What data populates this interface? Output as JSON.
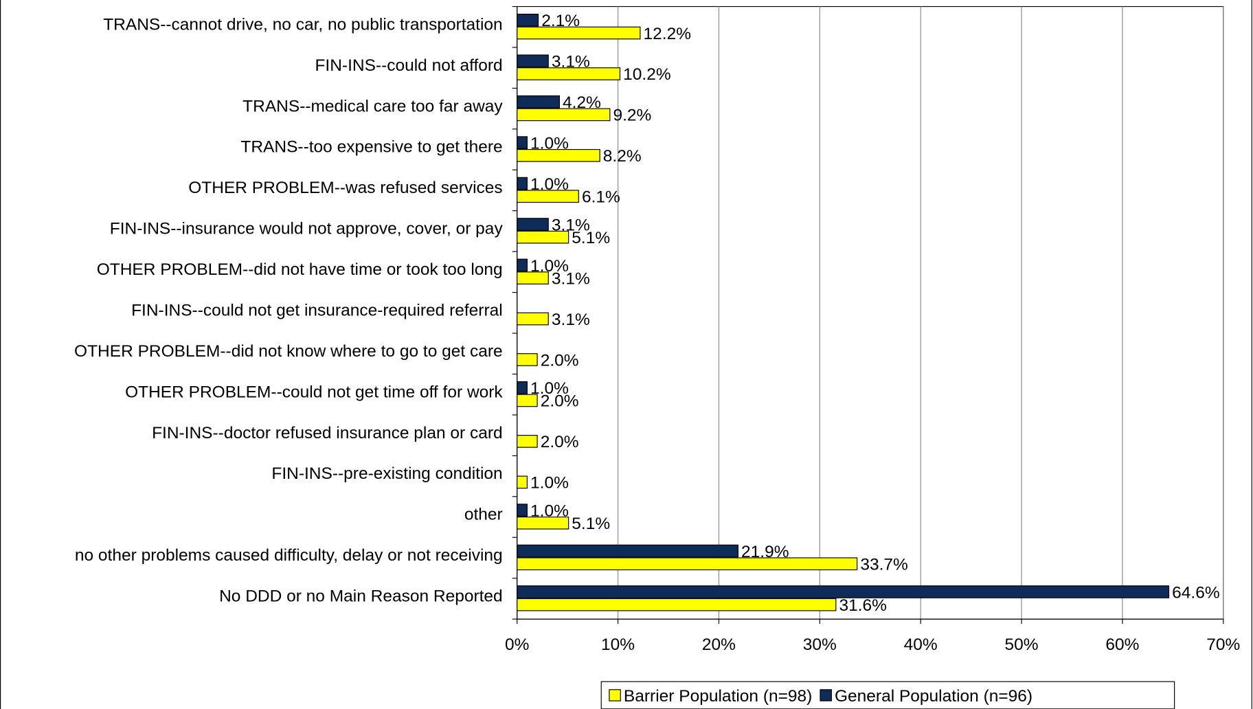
{
  "chart_data": {
    "type": "bar",
    "orientation": "horizontal",
    "categories": [
      "TRANS--cannot drive, no car, no public transportation",
      "FIN-INS--could not afford",
      "TRANS--medical care too far away",
      "TRANS--too expensive to get there",
      "OTHER PROBLEM--was refused services",
      "FIN-INS--insurance would not approve, cover, or pay",
      "OTHER PROBLEM--did not have time or took too long",
      "FIN-INS--could not get insurance-required referral",
      "OTHER PROBLEM--did not know where to go to get care",
      "OTHER PROBLEM--could not get time off for work",
      "FIN-INS--doctor refused insurance plan or card",
      "FIN-INS--pre-existing condition",
      "other",
      "no other problems caused difficulty, delay or not receiving",
      "No DDD or no Main Reason Reported"
    ],
    "series": [
      {
        "name": "Barrier Population (n=98)",
        "color": "#ffff00",
        "values": [
          12.2,
          10.2,
          9.2,
          8.2,
          6.1,
          5.1,
          3.1,
          3.1,
          2.0,
          2.0,
          2.0,
          1.0,
          5.1,
          33.7,
          31.6
        ],
        "value_labels": [
          "12.2%",
          "10.2%",
          "9.2%",
          "8.2%",
          "6.1%",
          "5.1%",
          "3.1%",
          "3.1%",
          "2.0%",
          "2.0%",
          "2.0%",
          "1.0%",
          "5.1%",
          "33.7%",
          "31.6%"
        ]
      },
      {
        "name": "General Population (n=96)",
        "color": "#0f2b57",
        "values": [
          2.1,
          3.1,
          4.2,
          1.0,
          1.0,
          3.1,
          1.0,
          null,
          null,
          1.0,
          null,
          null,
          1.0,
          21.9,
          64.6
        ],
        "value_labels": [
          "2.1%",
          "3.1%",
          "4.2%",
          "1.0%",
          "1.0%",
          "3.1%",
          "1.0%",
          null,
          null,
          "1.0%",
          null,
          null,
          "1.0%",
          "21.9%",
          "64.6%"
        ]
      }
    ],
    "xlim": [
      0,
      70
    ],
    "xticks": [
      {
        "value": 0,
        "label": "0%"
      },
      {
        "value": 10,
        "label": "10%"
      },
      {
        "value": 20,
        "label": "20%"
      },
      {
        "value": 30,
        "label": "30%"
      },
      {
        "value": 40,
        "label": "40%"
      },
      {
        "value": 50,
        "label": "50%"
      },
      {
        "value": 60,
        "label": "60%"
      },
      {
        "value": 70,
        "label": "70%"
      }
    ],
    "grid": true,
    "legend": "bottom-right"
  }
}
